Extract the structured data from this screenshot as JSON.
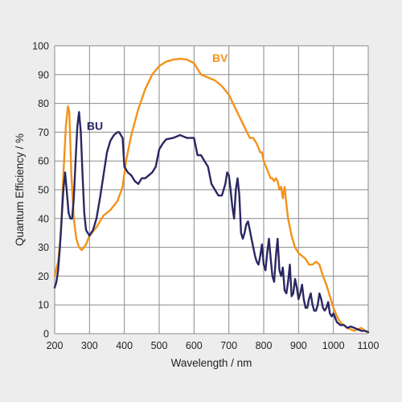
{
  "chart_data": {
    "type": "line",
    "title": "",
    "xlabel": "Wavelength / nm",
    "ylabel": "Quantum Efficiency / %",
    "xlim": [
      200,
      1100
    ],
    "ylim": [
      0,
      100
    ],
    "xticks": [
      "200",
      "300",
      "400",
      "500",
      "600",
      "700",
      "800",
      "900",
      "1000",
      "1100"
    ],
    "yticks": [
      "0",
      "10",
      "20",
      "30",
      "40",
      "50",
      "60",
      "70",
      "80",
      "90",
      "100"
    ],
    "grid": true,
    "series": [
      {
        "name": "BV",
        "color": "#f39219",
        "x": [
          200,
          210,
          218,
          225,
          232,
          238,
          242,
          248,
          255,
          262,
          270,
          278,
          290,
          300,
          320,
          340,
          360,
          380,
          395,
          405,
          420,
          440,
          460,
          480,
          500,
          520,
          540,
          560,
          580,
          600,
          620,
          640,
          660,
          680,
          700,
          720,
          740,
          760,
          770,
          780,
          790,
          795,
          800,
          810,
          820,
          825,
          830,
          835,
          840,
          845,
          850,
          855,
          860,
          865,
          870,
          880,
          890,
          900,
          910,
          920,
          930,
          940,
          950,
          960,
          970,
          980,
          990,
          1000,
          1010,
          1020,
          1030,
          1040,
          1050,
          1060,
          1070,
          1080,
          1090,
          1100
        ],
        "values": [
          20,
          25,
          35,
          55,
          72,
          79,
          77,
          55,
          40,
          33,
          30,
          29,
          31,
          34,
          37,
          41,
          43,
          46,
          51,
          60,
          69,
          78,
          85,
          90,
          93,
          94.5,
          95.2,
          95.5,
          95.2,
          94,
          90,
          89,
          88,
          86,
          83,
          78,
          73,
          68,
          68,
          66,
          63,
          63,
          60,
          57,
          54,
          54,
          53,
          54,
          53,
          50,
          51,
          47,
          51,
          45,
          40,
          34,
          30,
          28,
          27,
          26,
          24,
          24,
          25,
          24,
          20,
          17,
          13,
          9,
          6,
          4,
          3,
          2,
          1.5,
          1,
          1.5,
          2,
          1,
          0.5
        ]
      },
      {
        "name": "BU",
        "color": "#2a2762",
        "x": [
          200,
          205,
          210,
          215,
          220,
          225,
          230,
          235,
          240,
          245,
          250,
          255,
          260,
          265,
          270,
          275,
          280,
          285,
          290,
          295,
          300,
          310,
          320,
          330,
          340,
          350,
          360,
          370,
          380,
          385,
          390,
          395,
          400,
          410,
          420,
          430,
          440,
          450,
          460,
          470,
          480,
          490,
          500,
          510,
          520,
          540,
          560,
          570,
          580,
          590,
          600,
          610,
          620,
          630,
          640,
          650,
          660,
          670,
          680,
          690,
          695,
          700,
          705,
          710,
          715,
          720,
          725,
          730,
          735,
          740,
          745,
          750,
          755,
          760,
          765,
          770,
          775,
          780,
          785,
          790,
          795,
          800,
          805,
          810,
          815,
          820,
          825,
          830,
          835,
          840,
          845,
          850,
          855,
          860,
          865,
          870,
          875,
          880,
          885,
          890,
          895,
          900,
          905,
          910,
          915,
          920,
          925,
          930,
          935,
          940,
          945,
          950,
          955,
          960,
          965,
          970,
          975,
          980,
          985,
          990,
          995,
          1000,
          1010,
          1020,
          1030,
          1040,
          1050,
          1060,
          1070,
          1080,
          1090,
          1100
        ],
        "values": [
          16,
          18,
          22,
          30,
          40,
          50,
          56,
          49,
          42,
          40,
          40,
          47,
          60,
          72,
          77,
          70,
          55,
          42,
          36,
          35,
          34,
          36,
          40,
          47,
          55,
          63,
          67,
          69,
          70,
          70,
          69,
          68,
          58,
          56,
          55,
          53,
          52,
          54,
          54,
          55,
          56,
          58,
          64,
          66,
          67.5,
          68,
          69,
          68.5,
          68,
          68,
          68,
          62,
          62,
          60,
          58,
          52,
          50,
          48,
          48,
          52,
          56,
          55,
          50,
          44,
          40,
          50,
          54,
          48,
          35,
          33,
          35,
          38,
          39,
          36,
          33,
          30,
          27,
          25,
          24,
          27,
          31,
          24,
          22,
          28,
          33,
          26,
          20,
          18,
          27,
          33,
          22,
          20,
          23,
          15,
          14,
          18,
          24,
          13,
          14,
          19,
          16,
          12,
          14,
          17,
          12,
          9,
          9,
          12,
          14,
          10,
          8,
          8,
          10,
          14,
          12,
          9,
          8,
          9,
          11,
          7,
          6,
          7,
          4,
          3,
          3,
          2,
          2.5,
          2,
          1.5,
          1,
          1,
          0.5
        ],
        "label_position": "upper-left"
      }
    ]
  }
}
